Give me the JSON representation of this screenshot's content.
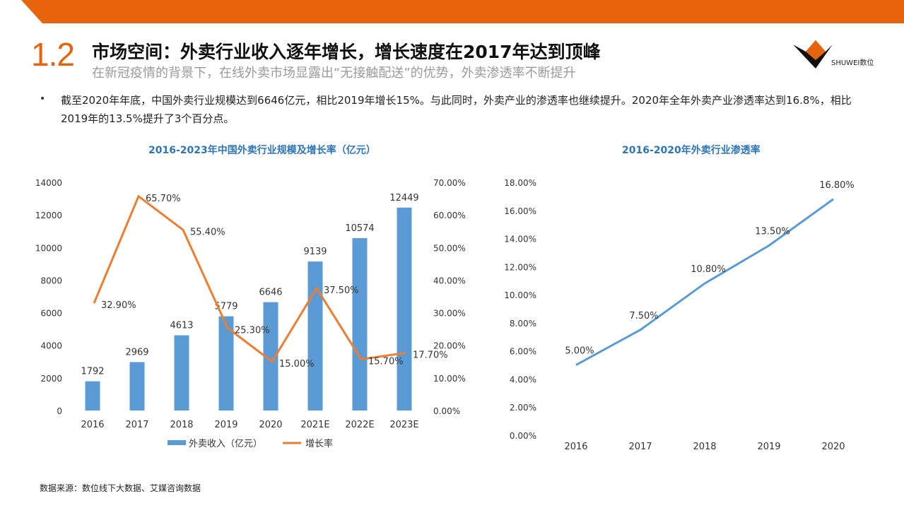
{
  "header": {
    "section_number": "1.2",
    "title": "市场空间：外卖行业收入逐年增长，增长速度在2017年达到顶峰",
    "subtitle": "在新冠疫情的背景下，在线外卖市场显露出“无接触配送”的优势，外卖渗透率不断提升",
    "logo_text": "SHUWEI数位",
    "accent_color": "#e8640c"
  },
  "bullet": {
    "text": "截至2020年年底，中国外卖行业规模达到6646亿元，相比2019年增长15%。与此同时，外卖产业的渗透率也继续提升。2020年全年外卖产业渗透率达到16.8%，相比2019年的13.5%提升了3个百分点。"
  },
  "source": "数据来源：数位线下大数据、艾媒咨询数据",
  "chart_data": [
    {
      "type": "bar",
      "title": "2016-2023年中国外卖行业规模及增长率（亿元）",
      "categories": [
        "2016",
        "2017",
        "2018",
        "2019",
        "2020",
        "2021E",
        "2022E",
        "2023E"
      ],
      "ylim": [
        0,
        14000
      ],
      "yticks": [
        "14000",
        "12000",
        "10000",
        "8000",
        "6000",
        "4000",
        "2000",
        "0"
      ],
      "y2lim": [
        0,
        70
      ],
      "y2ticks": [
        "70.00%",
        "60.00%",
        "50.00%",
        "40.00%",
        "30.00%",
        "20.00%",
        "10.00%",
        "0.00%"
      ],
      "series": [
        {
          "name": "外卖收入（亿元）",
          "kind": "bar",
          "color": "#5b9bd5",
          "values": [
            1792,
            2969,
            4613,
            5779,
            6646,
            9139,
            10574,
            12449
          ],
          "labels": [
            "1792",
            "2969",
            "4613",
            "5779",
            "6646",
            "9139",
            "10574",
            "12449"
          ]
        },
        {
          "name": "增长率",
          "kind": "line",
          "axis": "right",
          "color": "#ed7d31",
          "values": [
            32.9,
            65.7,
            55.4,
            25.3,
            15.0,
            37.5,
            15.7,
            17.7
          ],
          "labels": [
            "32.90%",
            "65.70%",
            "55.40%",
            "25.30%",
            "15.00%",
            "37.50%",
            "15.70%",
            "17.70%"
          ]
        }
      ],
      "legend": "bottom"
    },
    {
      "type": "line",
      "title": "2016-2020年外卖行业渗透率",
      "categories": [
        "2016",
        "2017",
        "2018",
        "2019",
        "2020"
      ],
      "ylim": [
        0,
        18
      ],
      "yticks": [
        "18.00%",
        "16.00%",
        "14.00%",
        "12.00%",
        "10.00%",
        "8.00%",
        "6.00%",
        "4.00%",
        "2.00%",
        "0.00%"
      ],
      "series": [
        {
          "kind": "line",
          "color": "#5b9bd5",
          "values": [
            5.0,
            7.5,
            10.8,
            13.5,
            16.8
          ],
          "labels": [
            "5.00%",
            "7.50%",
            "10.80%",
            "13.50%",
            "16.80%"
          ]
        }
      ]
    }
  ]
}
